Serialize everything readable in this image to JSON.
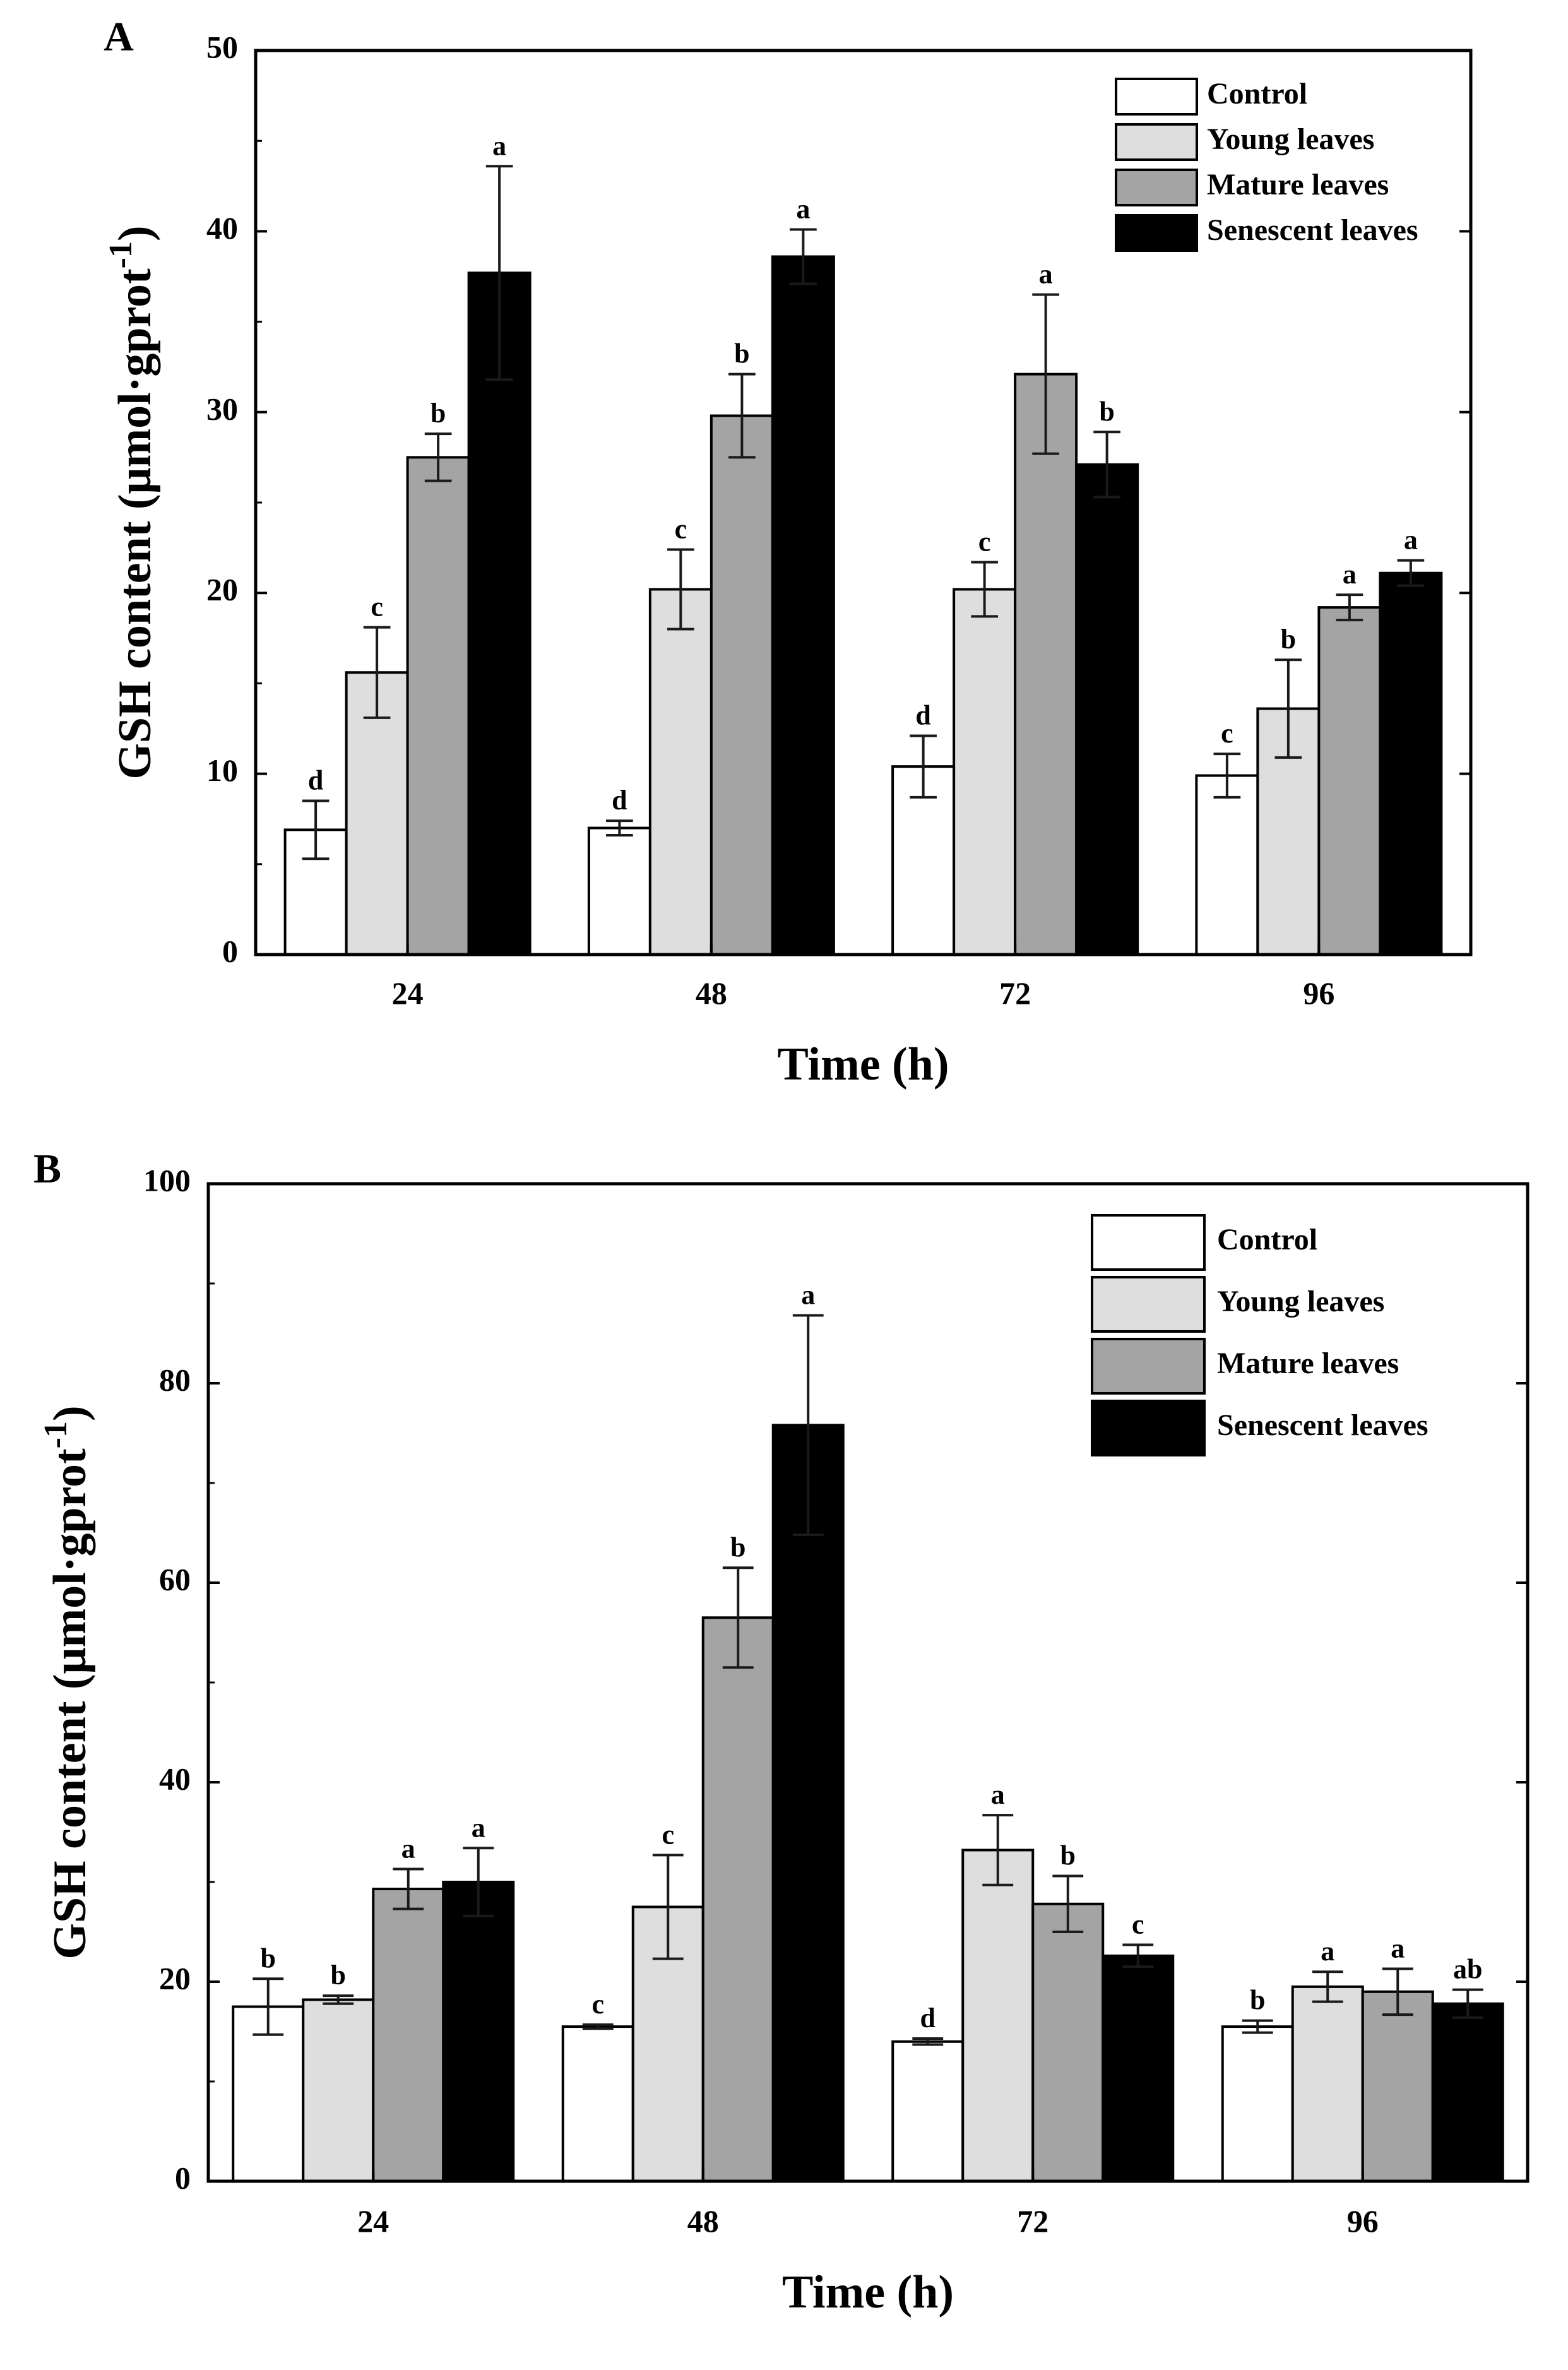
{
  "chart_data": [
    {
      "type": "bar",
      "panel_label": "A",
      "xlabel": "Time (h)",
      "ylabel_main": "GSH content (μmol·gprot",
      "ylabel_sup": "-1",
      "ylabel_close": ")",
      "ylim": [
        0,
        50
      ],
      "yticks": [
        0,
        10,
        20,
        30,
        40,
        50
      ],
      "categories": [
        "24",
        "48",
        "72",
        "96"
      ],
      "legend_position": "top-right",
      "series": [
        {
          "name": "Control",
          "color": "#ffffff",
          "values": [
            6.9,
            7.0,
            10.4,
            9.9
          ],
          "errors": [
            1.6,
            0.4,
            1.7,
            1.2
          ],
          "letters": [
            "d",
            "d",
            "d",
            "c"
          ]
        },
        {
          "name": "Young leaves",
          "color": "#dedede",
          "values": [
            15.6,
            20.2,
            20.2,
            13.6
          ],
          "errors": [
            2.5,
            2.2,
            1.5,
            2.7
          ],
          "letters": [
            "c",
            "c",
            "c",
            "b"
          ]
        },
        {
          "name": "Mature leaves",
          "color": "#a4a4a4",
          "values": [
            27.5,
            29.8,
            32.1,
            19.2
          ],
          "errors": [
            1.3,
            2.3,
            4.4,
            0.7
          ],
          "letters": [
            "b",
            "b",
            "a",
            "a"
          ]
        },
        {
          "name": "Senescent leaves",
          "color": "#000000",
          "values": [
            37.7,
            38.6,
            27.1,
            21.1
          ],
          "errors": [
            5.9,
            1.5,
            1.8,
            0.7
          ],
          "letters": [
            "a",
            "a",
            "b",
            "a"
          ]
        }
      ]
    },
    {
      "type": "bar",
      "panel_label": "B",
      "xlabel": "Time (h)",
      "ylabel_main": "GSH content (μmol·gprot",
      "ylabel_sup": "-1",
      "ylabel_close": ")",
      "ylim": [
        0,
        100
      ],
      "yticks": [
        0,
        20,
        40,
        60,
        80,
        100
      ],
      "categories": [
        "24",
        "48",
        "72",
        "96"
      ],
      "legend_position": "top-right",
      "series": [
        {
          "name": "Control",
          "color": "#ffffff",
          "values": [
            17.5,
            15.5,
            14.0,
            15.5
          ],
          "errors": [
            2.8,
            0.2,
            0.3,
            0.6
          ],
          "letters": [
            "b",
            "c",
            "d",
            "b"
          ]
        },
        {
          "name": "Young leaves",
          "color": "#dedede",
          "values": [
            18.2,
            27.5,
            33.2,
            19.5
          ],
          "errors": [
            0.4,
            5.2,
            3.5,
            1.5
          ],
          "letters": [
            "b",
            "c",
            "a",
            "a"
          ]
        },
        {
          "name": "Mature leaves",
          "color": "#a4a4a4",
          "values": [
            29.3,
            56.5,
            27.8,
            19.0
          ],
          "errors": [
            2.0,
            5.0,
            2.8,
            2.3
          ],
          "letters": [
            "a",
            "b",
            "b",
            "a"
          ]
        },
        {
          "name": "Senescent leaves",
          "color": "#000000",
          "values": [
            30.0,
            75.8,
            22.6,
            17.8
          ],
          "errors": [
            3.4,
            11.0,
            1.1,
            1.4
          ],
          "letters": [
            "a",
            "a",
            "c",
            "ab"
          ]
        }
      ]
    }
  ]
}
